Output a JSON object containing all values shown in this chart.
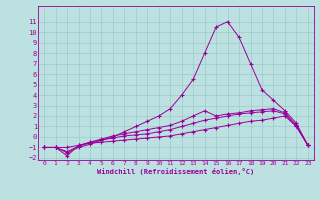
{
  "xlabel": "Windchill (Refroidissement éolien,°C)",
  "x": [
    0,
    1,
    2,
    3,
    4,
    5,
    6,
    7,
    8,
    9,
    10,
    11,
    12,
    13,
    14,
    15,
    16,
    17,
    18,
    19,
    20,
    21,
    22,
    23
  ],
  "line1": [
    -1,
    -1,
    -1.8,
    -0.8,
    -0.6,
    -0.5,
    -0.4,
    -0.3,
    -0.2,
    -0.1,
    0.0,
    0.1,
    0.3,
    0.5,
    0.7,
    0.9,
    1.1,
    1.3,
    1.5,
    1.6,
    1.8,
    2.0,
    1.0,
    -0.8
  ],
  "line2": [
    -1,
    -1,
    -1.4,
    -0.9,
    -0.5,
    -0.3,
    -0.1,
    0.1,
    0.2,
    0.3,
    0.5,
    0.7,
    1.0,
    1.3,
    1.6,
    1.8,
    2.0,
    2.2,
    2.3,
    2.4,
    2.5,
    2.2,
    1.0,
    -0.8
  ],
  "line3": [
    -1,
    -1,
    -1.0,
    -0.8,
    -0.5,
    -0.2,
    0.1,
    0.3,
    0.5,
    0.7,
    0.9,
    1.1,
    1.5,
    2.0,
    2.5,
    2.0,
    2.2,
    2.3,
    2.5,
    2.6,
    2.7,
    2.3,
    1.1,
    -0.8
  ],
  "line4": [
    -1,
    -1,
    -1.5,
    -1.0,
    -0.7,
    -0.3,
    0.0,
    0.5,
    1.0,
    1.5,
    2.0,
    2.7,
    4.0,
    5.5,
    8.0,
    10.5,
    11.0,
    9.5,
    7.0,
    4.5,
    3.5,
    2.5,
    1.3,
    -0.8
  ],
  "line_color": "#990099",
  "bg_color": "#bde0e0",
  "grid_color": "#99cccc",
  "ylim": [
    -2,
    12
  ],
  "xlim": [
    -0.5,
    23.5
  ],
  "yticks": [
    -2,
    -1,
    0,
    1,
    2,
    3,
    4,
    5,
    6,
    7,
    8,
    9,
    10,
    11
  ],
  "xticks": [
    0,
    1,
    2,
    3,
    4,
    5,
    6,
    7,
    8,
    9,
    10,
    11,
    12,
    13,
    14,
    15,
    16,
    17,
    18,
    19,
    20,
    21,
    22,
    23
  ]
}
